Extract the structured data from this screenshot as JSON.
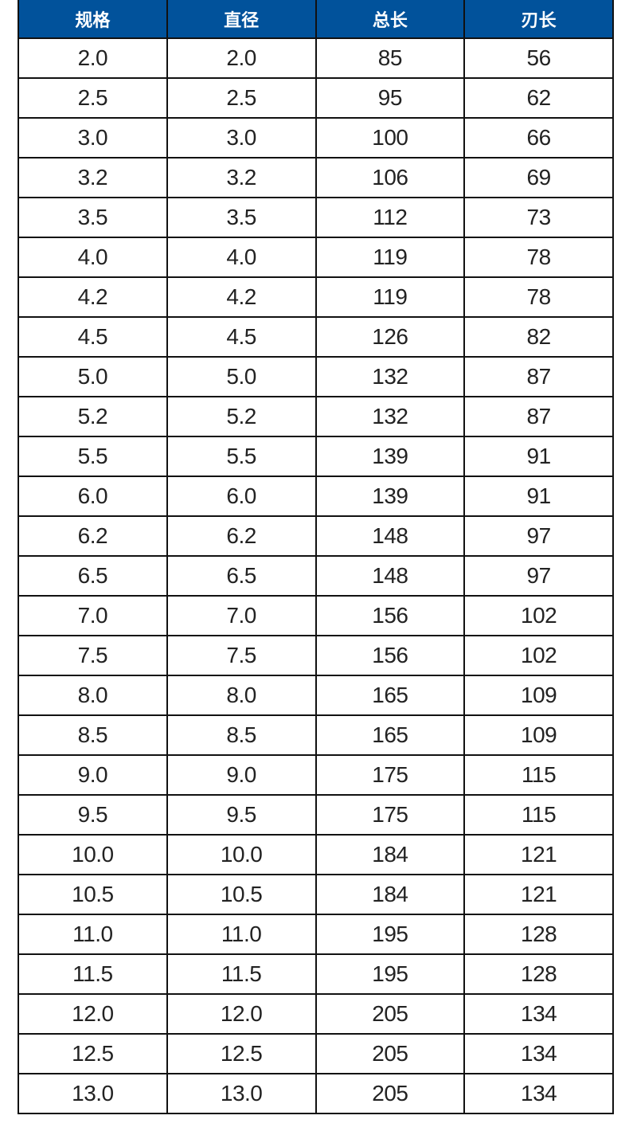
{
  "table": {
    "headers": [
      "规格",
      "直径",
      "总长",
      "刃长"
    ],
    "header_color": "#01529b",
    "rows": [
      [
        "2.0",
        "2.0",
        "85",
        "56"
      ],
      [
        "2.5",
        "2.5",
        "95",
        "62"
      ],
      [
        "3.0",
        "3.0",
        "100",
        "66"
      ],
      [
        "3.2",
        "3.2",
        "106",
        "69"
      ],
      [
        "3.5",
        "3.5",
        "112",
        "73"
      ],
      [
        "4.0",
        "4.0",
        "119",
        "78"
      ],
      [
        "4.2",
        "4.2",
        "119",
        "78"
      ],
      [
        "4.5",
        "4.5",
        "126",
        "82"
      ],
      [
        "5.0",
        "5.0",
        "132",
        "87"
      ],
      [
        "5.2",
        "5.2",
        "132",
        "87"
      ],
      [
        "5.5",
        "5.5",
        "139",
        "91"
      ],
      [
        "6.0",
        "6.0",
        "139",
        "91"
      ],
      [
        "6.2",
        "6.2",
        "148",
        "97"
      ],
      [
        "6.5",
        "6.5",
        "148",
        "97"
      ],
      [
        "7.0",
        "7.0",
        "156",
        "102"
      ],
      [
        "7.5",
        "7.5",
        "156",
        "102"
      ],
      [
        "8.0",
        "8.0",
        "165",
        "109"
      ],
      [
        "8.5",
        "8.5",
        "165",
        "109"
      ],
      [
        "9.0",
        "9.0",
        "175",
        "115"
      ],
      [
        "9.5",
        "9.5",
        "175",
        "115"
      ],
      [
        "10.0",
        "10.0",
        "184",
        "121"
      ],
      [
        "10.5",
        "10.5",
        "184",
        "121"
      ],
      [
        "11.0",
        "11.0",
        "195",
        "128"
      ],
      [
        "11.5",
        "11.5",
        "195",
        "128"
      ],
      [
        "12.0",
        "12.0",
        "205",
        "134"
      ],
      [
        "12.5",
        "12.5",
        "205",
        "134"
      ],
      [
        "13.0",
        "13.0",
        "205",
        "134"
      ]
    ]
  }
}
